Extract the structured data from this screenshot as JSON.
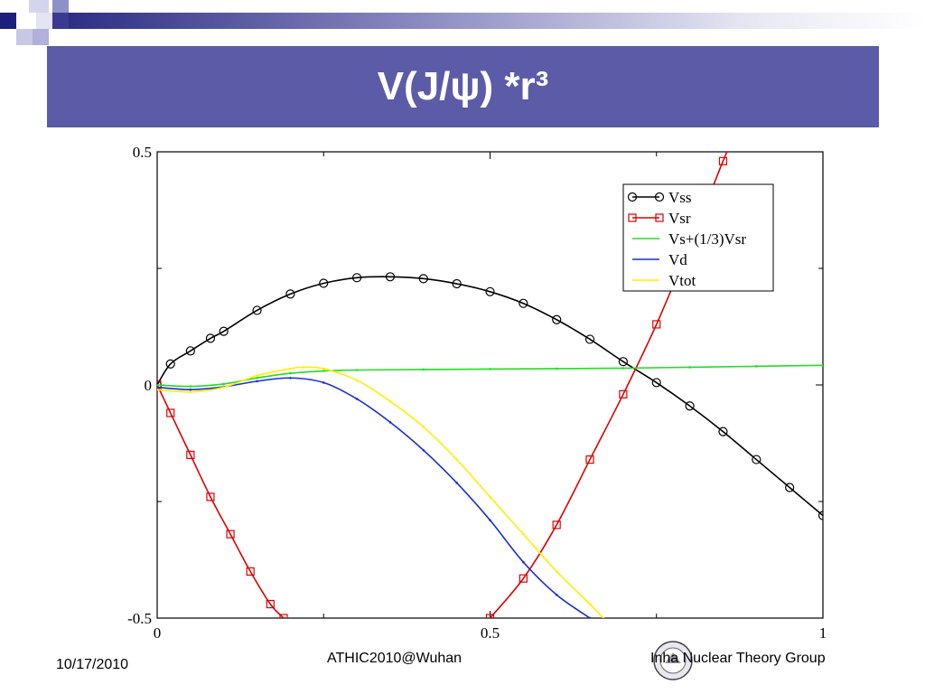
{
  "slide": {
    "title": "V(J/ψ) *r³",
    "footer_date": "10/17/2010",
    "footer_center": "ATHIC2010@Wuhan",
    "footer_right": "Inha Nuclear Theory Group",
    "accent_color": "#5b5ba8"
  },
  "chart_data": {
    "type": "line",
    "title": "",
    "xlabel": "",
    "ylabel": "",
    "xlim": [
      0,
      1
    ],
    "ylim": [
      -0.5,
      0.5
    ],
    "x_tick_labels": [
      "0",
      "0.5",
      "1"
    ],
    "x_tick_values": [
      0,
      0.5,
      1
    ],
    "y_tick_labels": [
      "-0.5",
      "0",
      "0.5"
    ],
    "y_tick_values": [
      -0.5,
      0,
      0.5
    ],
    "grid": false,
    "legend_position": "top-right",
    "series": [
      {
        "name": "Vss",
        "color": "#000000",
        "marker": "circle",
        "x": [
          0,
          0.02,
          0.05,
          0.08,
          0.1,
          0.15,
          0.2,
          0.25,
          0.3,
          0.35,
          0.4,
          0.45,
          0.5,
          0.55,
          0.6,
          0.65,
          0.7,
          0.75,
          0.8,
          0.85,
          0.9,
          0.95,
          1.0
        ],
        "y": [
          0,
          0.045,
          0.073,
          0.1,
          0.115,
          0.16,
          0.195,
          0.218,
          0.23,
          0.232,
          0.228,
          0.217,
          0.2,
          0.175,
          0.14,
          0.098,
          0.05,
          0.005,
          -0.045,
          -0.1,
          -0.16,
          -0.22,
          -0.28
        ]
      },
      {
        "name": "Vsr",
        "color": "#dd0000",
        "marker": "square",
        "x": [
          0,
          0.02,
          0.05,
          0.08,
          0.11,
          0.14,
          0.17,
          0.19,
          0.5,
          0.55,
          0.6,
          0.65,
          0.7,
          0.75,
          0.8,
          0.85,
          0.9
        ],
        "y": [
          0,
          -0.06,
          -0.15,
          -0.24,
          -0.32,
          -0.4,
          -0.47,
          -0.5,
          -0.5,
          -0.415,
          -0.3,
          -0.16,
          -0.02,
          0.13,
          0.3,
          0.48,
          0.65
        ]
      },
      {
        "name": "Vs+(1/3)Vsr",
        "color": "#22dd22",
        "marker": "dot",
        "x": [
          0,
          0.05,
          0.1,
          0.15,
          0.2,
          0.25,
          0.3,
          0.4,
          0.5,
          0.6,
          0.7,
          0.8,
          0.9,
          1.0
        ],
        "y": [
          0,
          -0.003,
          0.002,
          0.015,
          0.025,
          0.03,
          0.032,
          0.033,
          0.034,
          0.035,
          0.036,
          0.038,
          0.04,
          0.042
        ]
      },
      {
        "name": "Vd",
        "color": "#1a2ed6",
        "marker": "dot",
        "x": [
          0,
          0.05,
          0.1,
          0.15,
          0.2,
          0.25,
          0.3,
          0.35,
          0.4,
          0.45,
          0.5,
          0.55,
          0.6,
          0.65
        ],
        "y": [
          -0.005,
          -0.01,
          -0.004,
          0.008,
          0.015,
          0.005,
          -0.03,
          -0.08,
          -0.14,
          -0.21,
          -0.29,
          -0.38,
          -0.45,
          -0.5
        ]
      },
      {
        "name": "Vtot",
        "color": "#ffee00",
        "marker": "dot",
        "x": [
          0,
          0.05,
          0.1,
          0.15,
          0.2,
          0.22,
          0.25,
          0.3,
          0.35,
          0.4,
          0.45,
          0.5,
          0.55,
          0.6,
          0.65,
          0.67
        ],
        "y": [
          -0.01,
          -0.015,
          -0.005,
          0.02,
          0.035,
          0.038,
          0.035,
          0.01,
          -0.035,
          -0.09,
          -0.16,
          -0.24,
          -0.32,
          -0.4,
          -0.47,
          -0.5
        ]
      }
    ]
  }
}
